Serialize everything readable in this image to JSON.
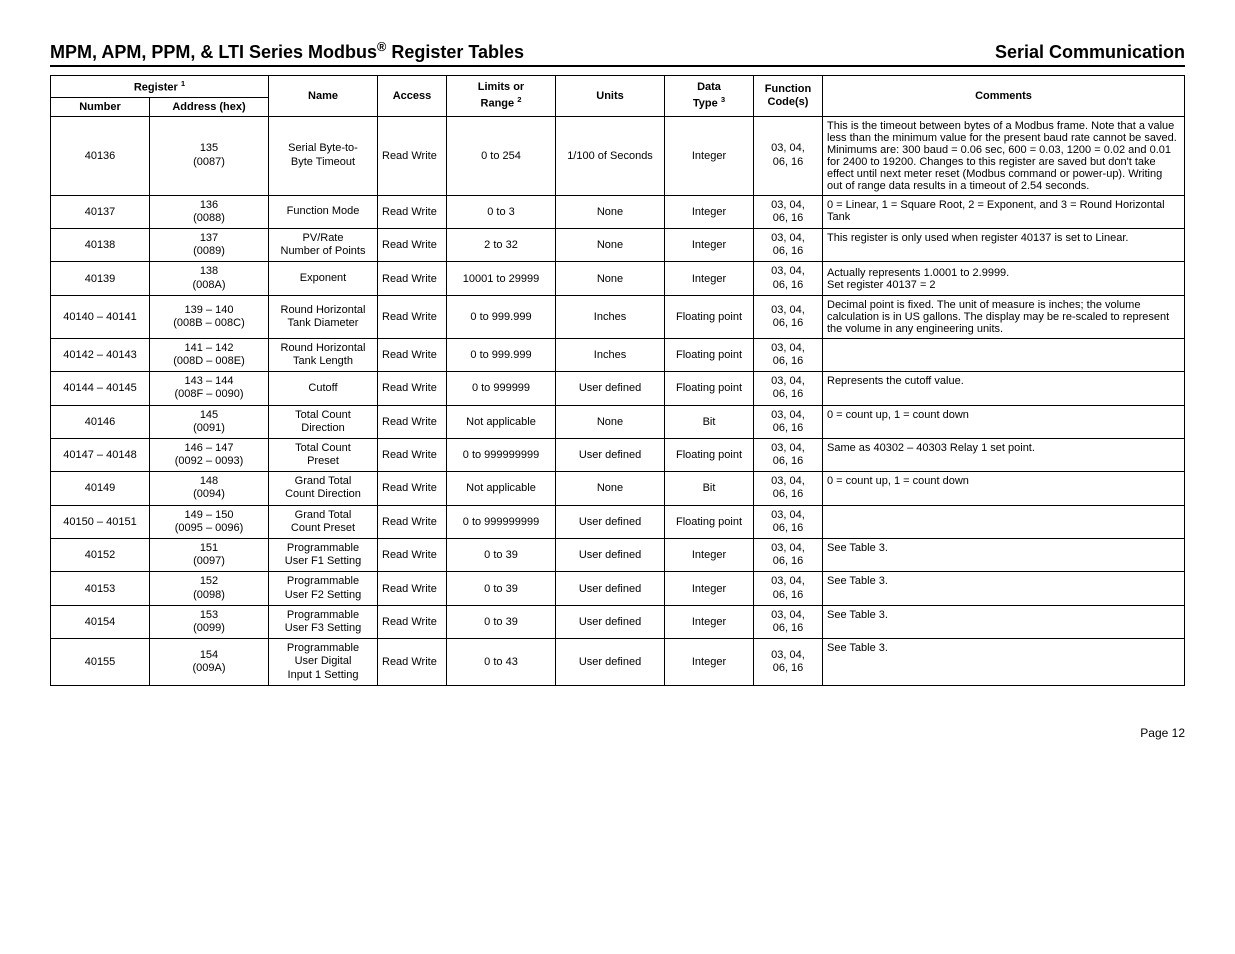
{
  "header": {
    "title_left_pre": "MPM, APM, PPM, & LTI Series Modbus",
    "title_left_sup": "®",
    "title_left_post": " Register Tables",
    "title_right": "Serial Communication"
  },
  "table": {
    "headers": {
      "register_group": "Register",
      "register_sup": "1",
      "number": "Number",
      "address": "Address (hex)",
      "name": "Name",
      "access": "Access",
      "limits_line1": "Limits or",
      "limits_line2": "Range",
      "limits_sup": "2",
      "units": "Units",
      "datatype_line1": "Data",
      "datatype_line2": "Type",
      "datatype_sup": "3",
      "func_line1": "Function",
      "func_line2": "Code(s)",
      "comments": "Comments"
    },
    "rows": [
      {
        "number": "40136",
        "address_l1": "135",
        "address_l2": "(0087)",
        "name_l1": "Serial Byte-to-",
        "name_l2": "Byte Timeout",
        "access": "Read Write",
        "limits": "0 to 254",
        "units": "1/100 of Seconds",
        "datatype": "Integer",
        "func_l1": "03, 04,",
        "func_l2": "06, 16",
        "comments": "This is the timeout between bytes of a Modbus frame. Note that a value less than the minimum value for the present baud rate cannot be saved. Minimums are: 300 baud = 0.06 sec, 600 = 0.03, 1200 = 0.02 and 0.01 for 2400 to 19200. Changes to this register are saved but don't take effect until next meter reset (Modbus command or power-up). Writing out of range data results in a timeout of 2.54 seconds."
      },
      {
        "number": "40137",
        "address_l1": "136",
        "address_l2": "(0088)",
        "name_l1": "Function Mode",
        "name_l2": "",
        "access": "Read Write",
        "limits": "0 to 3",
        "units": "None",
        "datatype": "Integer",
        "func_l1": "03, 04,",
        "func_l2": "06, 16",
        "comments": "0 = Linear, 1 = Square Root, 2 = Exponent, and 3 = Round Horizontal Tank"
      },
      {
        "number": "40138",
        "address_l1": "137",
        "address_l2": "(0089)",
        "name_l1": "PV/Rate",
        "name_l2": "Number of Points",
        "access": "Read Write",
        "limits": "2 to 32",
        "units": "None",
        "datatype": "Integer",
        "func_l1": "03, 04,",
        "func_l2": "06, 16",
        "comments": "This register is only used when register 40137 is set to Linear."
      },
      {
        "number": "40139",
        "address_l1": "138",
        "address_l2": "(008A)",
        "name_l1": "Exponent",
        "name_l2": "",
        "access": "Read Write",
        "limits": "10001 to 29999",
        "units": "None",
        "datatype": "Integer",
        "func_l1": "03, 04,",
        "func_l2": "06, 16",
        "comments_l1": "Actually represents 1.0001 to 2.9999.",
        "comments_l2": "Set register 40137 = 2"
      },
      {
        "number": "40140 – 40141",
        "address_l1": "139 – 140",
        "address_l2": "(008B – 008C)",
        "name_l1": "Round Horizontal",
        "name_l2": "Tank Diameter",
        "access": "Read Write",
        "limits": "0 to 999.999",
        "units": "Inches",
        "datatype": "Floating point",
        "func_l1": "03, 04,",
        "func_l2": "06, 16",
        "comments": "Decimal point is fixed. The unit of measure is inches; the volume calculation is in US gallons. The display may be re-scaled to represent the volume in any engineering units."
      },
      {
        "number": "40142 – 40143",
        "address_l1": "141 – 142",
        "address_l2": "(008D – 008E)",
        "name_l1": "Round Horizontal",
        "name_l2": "Tank Length",
        "access": "Read Write",
        "limits": "0 to 999.999",
        "units": "Inches",
        "datatype": "Floating point",
        "func_l1": "03, 04,",
        "func_l2": "06, 16",
        "comments": ""
      },
      {
        "number": "40144 – 40145",
        "address_l1": "143 – 144",
        "address_l2": "(008F – 0090)",
        "name_l1": "Cutoff",
        "name_l2": "",
        "access": "Read Write",
        "limits": "0 to 999999",
        "units": "User defined",
        "datatype": "Floating point",
        "func_l1": "03, 04,",
        "func_l2": "06, 16",
        "comments": "Represents the cutoff value."
      },
      {
        "number": "40146",
        "address_l1": "145",
        "address_l2": "(0091)",
        "name_l1": "Total Count",
        "name_l2": "Direction",
        "access": "Read Write",
        "limits": "Not applicable",
        "units": "None",
        "datatype": "Bit",
        "func_l1": "03, 04,",
        "func_l2": "06, 16",
        "comments": "0 = count up, 1 = count down"
      },
      {
        "number": "40147 – 40148",
        "address_l1": "146 – 147",
        "address_l2": "(0092 – 0093)",
        "name_l1": "Total Count",
        "name_l2": "Preset",
        "access": "Read Write",
        "limits": "0 to 999999999",
        "units": "User defined",
        "datatype": "Floating point",
        "func_l1": "03, 04,",
        "func_l2": "06, 16",
        "comments": "Same as 40302 – 40303 Relay 1 set point."
      },
      {
        "number": "40149",
        "address_l1": "148",
        "address_l2": "(0094)",
        "name_l1": "Grand Total",
        "name_l2": "Count Direction",
        "access": "Read Write",
        "limits": "Not applicable",
        "units": "None",
        "datatype": "Bit",
        "func_l1": "03, 04,",
        "func_l2": "06, 16",
        "comments": "0 = count up, 1 = count down"
      },
      {
        "number": "40150 – 40151",
        "address_l1": "149 – 150",
        "address_l2": "(0095 – 0096)",
        "name_l1": "Grand Total",
        "name_l2": "Count Preset",
        "access": "Read Write",
        "limits": "0 to 999999999",
        "units": "User defined",
        "datatype": "Floating point",
        "func_l1": "03, 04,",
        "func_l2": "06, 16",
        "comments": ""
      },
      {
        "number": "40152",
        "address_l1": "151",
        "address_l2": "(0097)",
        "name_l1": "Programmable",
        "name_l2": "User F1 Setting",
        "access": "Read Write",
        "limits": "0 to 39",
        "units": "User defined",
        "datatype": "Integer",
        "func_l1": "03, 04,",
        "func_l2": "06, 16",
        "comments": "See Table 3."
      },
      {
        "number": "40153",
        "address_l1": "152",
        "address_l2": "(0098)",
        "name_l1": "Programmable",
        "name_l2": "User F2 Setting",
        "access": "Read Write",
        "limits": "0 to 39",
        "units": "User defined",
        "datatype": "Integer",
        "func_l1": "03, 04,",
        "func_l2": "06, 16",
        "comments": "See Table 3."
      },
      {
        "number": "40154",
        "address_l1": "153",
        "address_l2": "(0099)",
        "name_l1": "Programmable",
        "name_l2": "User F3 Setting",
        "access": "Read Write",
        "limits": "0 to 39",
        "units": "User defined",
        "datatype": "Integer",
        "func_l1": "03, 04,",
        "func_l2": "06, 16",
        "comments": "See Table 3."
      },
      {
        "number": "40155",
        "address_l1": "154",
        "address_l2": "(009A)",
        "name_l1": "Programmable",
        "name_l2": "User Digital",
        "name_l3": "Input 1 Setting",
        "access": "Read Write",
        "limits": "0 to 43",
        "units": "User defined",
        "datatype": "Integer",
        "func_l1": "03, 04,",
        "func_l2": "06, 16",
        "comments": "See Table 3."
      }
    ]
  },
  "footer": {
    "page": "Page 12"
  }
}
